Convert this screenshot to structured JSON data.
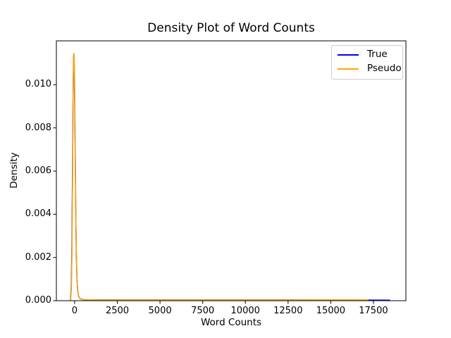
{
  "chart_data": {
    "type": "line",
    "title": "Density Plot of Word Counts",
    "xlabel": "Word Counts",
    "ylabel": "Density",
    "xlim": [
      -1070,
      19400
    ],
    "ylim": [
      0,
      0.01203
    ],
    "x_tick_values": [
      0,
      2500,
      5000,
      7500,
      10000,
      12500,
      15000,
      17500
    ],
    "x_tick_labels": [
      "0",
      "2500",
      "5000",
      "7500",
      "10000",
      "12500",
      "15000",
      "17500"
    ],
    "y_tick_values": [
      0.0,
      0.002,
      0.004,
      0.006,
      0.008,
      0.01
    ],
    "y_tick_labels": [
      "0.000",
      "0.002",
      "0.004",
      "0.006",
      "0.008",
      "0.010"
    ],
    "grid": false,
    "axes_color": "#000000",
    "legend": {
      "position": "upper right",
      "entries": [
        "True",
        "Pseudo"
      ]
    },
    "series": [
      {
        "name": "True",
        "color": "#0000ff",
        "peak": {
          "x": -55,
          "density": 0.0114
        },
        "support_max_x": 18450,
        "points": [
          [
            -240,
            2e-05
          ],
          [
            -200,
            0.0006
          ],
          [
            -165,
            0.0022
          ],
          [
            -130,
            0.0055
          ],
          [
            -95,
            0.0092
          ],
          [
            -70,
            0.0109
          ],
          [
            -55,
            0.0114
          ],
          [
            -40,
            0.01135
          ],
          [
            -15,
            0.0106
          ],
          [
            10,
            0.0088
          ],
          [
            40,
            0.0062
          ],
          [
            70,
            0.0038
          ],
          [
            100,
            0.0021
          ],
          [
            135,
            0.00105
          ],
          [
            175,
            0.00048
          ],
          [
            230,
            0.0002
          ],
          [
            320,
            9e-05
          ],
          [
            500,
            5e-05
          ],
          [
            1000,
            4e-05
          ],
          [
            3000,
            3.5e-05
          ],
          [
            8000,
            3.5e-05
          ],
          [
            13000,
            3.5e-05
          ],
          [
            17000,
            3e-05
          ],
          [
            18450,
            2.5e-05
          ]
        ]
      },
      {
        "name": "Pseudo",
        "color": "#ffa500",
        "peak": {
          "x": -48,
          "density": 0.01146
        },
        "support_max_x": 17170,
        "points": [
          [
            -230,
            2e-05
          ],
          [
            -190,
            0.0006
          ],
          [
            -155,
            0.0023
          ],
          [
            -120,
            0.0057
          ],
          [
            -88,
            0.0095
          ],
          [
            -63,
            0.0111
          ],
          [
            -48,
            0.01146
          ],
          [
            -33,
            0.0114
          ],
          [
            -8,
            0.0106
          ],
          [
            17,
            0.0087
          ],
          [
            47,
            0.006
          ],
          [
            77,
            0.0036
          ],
          [
            107,
            0.002
          ],
          [
            142,
            0.001
          ],
          [
            182,
            0.00045
          ],
          [
            237,
            0.00018
          ],
          [
            327,
            8e-05
          ],
          [
            507,
            5e-05
          ],
          [
            1000,
            4e-05
          ],
          [
            3000,
            3.8e-05
          ],
          [
            8000,
            3.8e-05
          ],
          [
            13000,
            3.8e-05
          ],
          [
            17170,
            3.5e-05
          ]
        ]
      }
    ]
  }
}
